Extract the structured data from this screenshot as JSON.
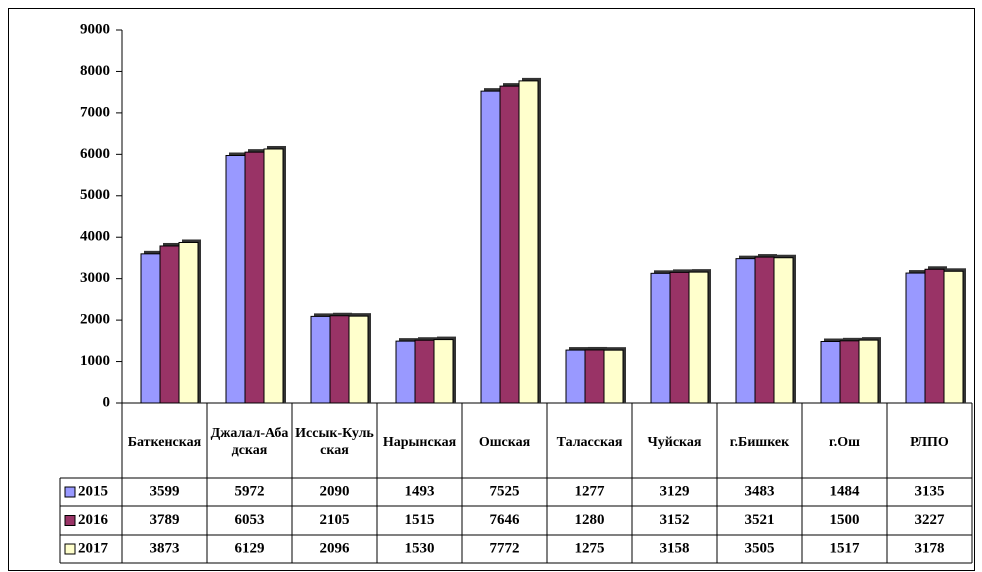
{
  "chart_data": {
    "type": "bar",
    "categories": [
      "Баткенская",
      "Джалал-Абадская",
      "Иссык-Кульская",
      "Нарынская",
      "Ошская",
      "Таласская",
      "Чуйская",
      "г.Бишкек",
      "г.Ош",
      "РЛПО"
    ],
    "series": [
      {
        "name": "2015",
        "color": "#9999ff",
        "values": [
          3599,
          5972,
          2090,
          1493,
          7525,
          1277,
          3129,
          3483,
          1484,
          3135
        ]
      },
      {
        "name": "2016",
        "color": "#993366",
        "values": [
          3789,
          6053,
          2105,
          1515,
          7646,
          1280,
          3152,
          3521,
          1500,
          3227
        ]
      },
      {
        "name": "2017",
        "color": "#ffffcc",
        "values": [
          3873,
          6129,
          2096,
          1530,
          7772,
          1275,
          3158,
          3505,
          1517,
          3178
        ]
      }
    ],
    "ylim": [
      0,
      9000
    ],
    "yticks": [
      0,
      1000,
      2000,
      3000,
      4000,
      5000,
      6000,
      7000,
      8000,
      9000
    ],
    "data_table": true
  }
}
